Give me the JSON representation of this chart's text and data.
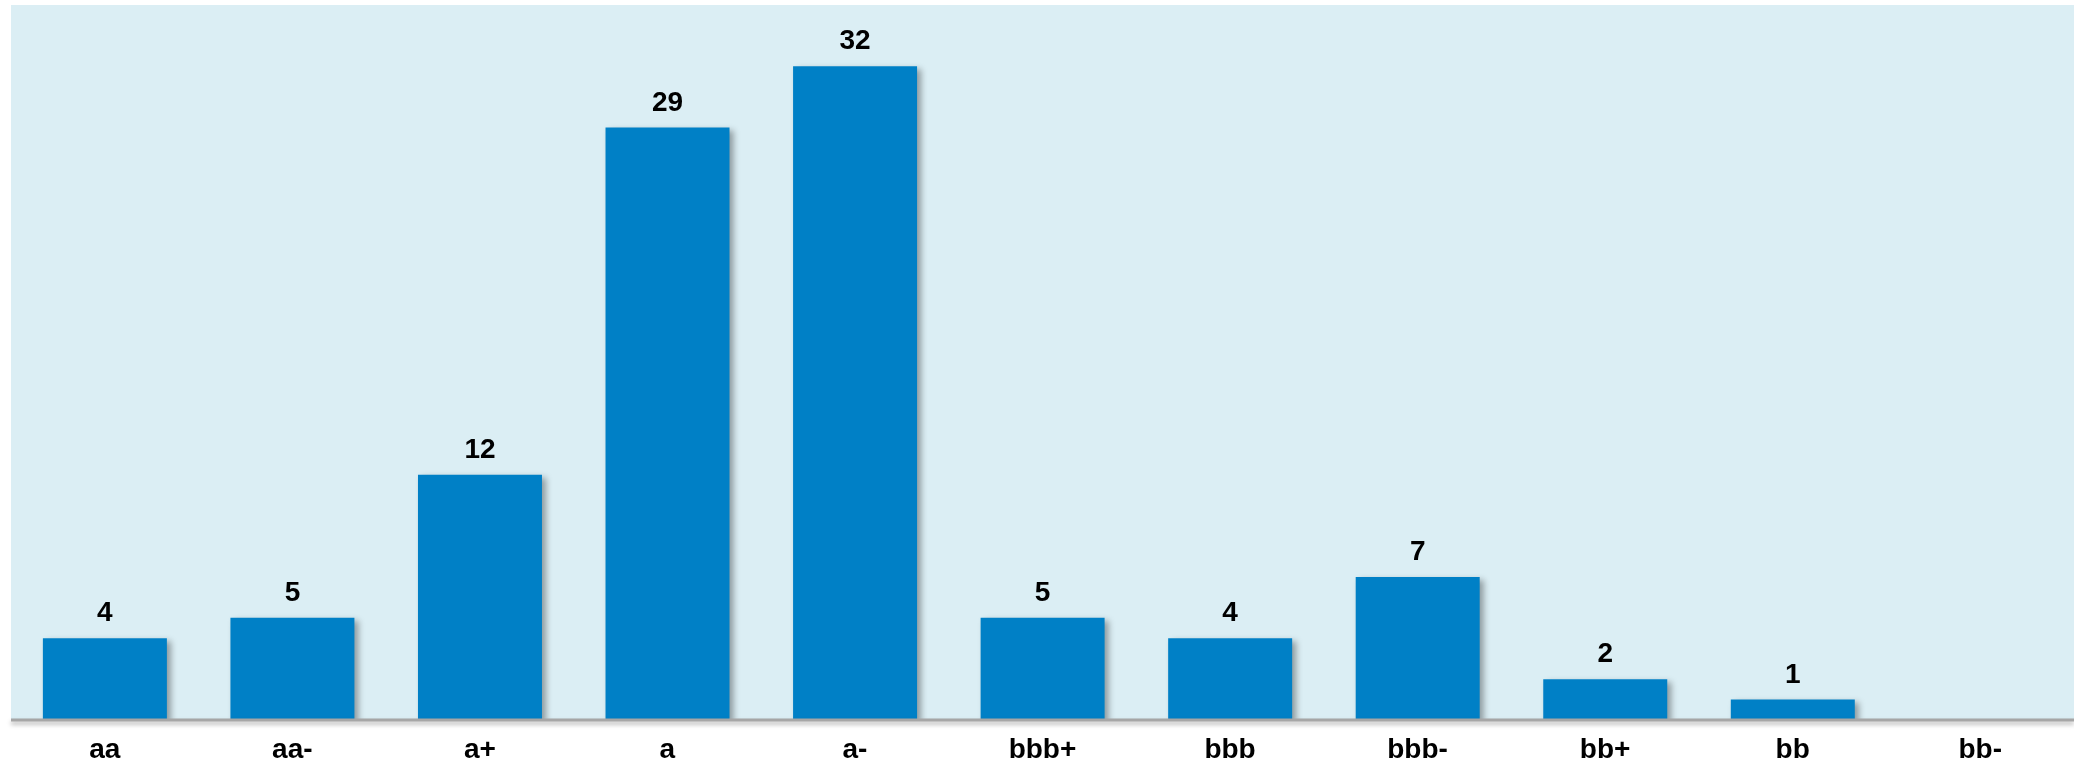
{
  "chart_data": {
    "type": "bar",
    "categories": [
      "aa",
      "aa-",
      "a+",
      "a",
      "a-",
      "bbb+",
      "bbb",
      "bbb-",
      "bb+",
      "bb",
      "bb-"
    ],
    "values": [
      4,
      5,
      12,
      29,
      32,
      5,
      4,
      7,
      2,
      1,
      0
    ],
    "color": "#0080c6",
    "value_labels": [
      "4",
      "5",
      "12",
      "29",
      "32",
      "5",
      "4",
      "7",
      "2",
      "1",
      null
    ]
  }
}
